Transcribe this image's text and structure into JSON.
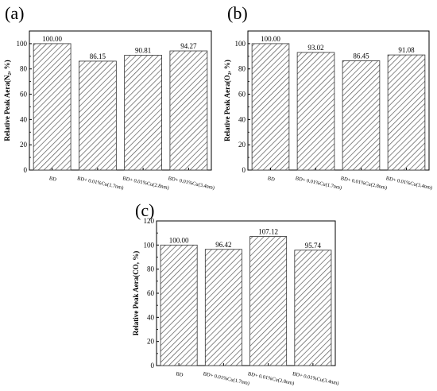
{
  "figure": {
    "panels": [
      "(a)",
      "(b)",
      "(c)"
    ]
  },
  "chart_data": [
    {
      "type": "bar",
      "panel": "(a)",
      "ylabel": "Relative Peak Aera(N₂, %)",
      "categories": [
        "BD",
        "BD+ 0.01%Cu(1.7nm)",
        "BD+ 0.01%Cu(2.8nm)",
        "BD+ 0.01%Cu(3.4nm)"
      ],
      "values": [
        100.0,
        86.15,
        90.81,
        94.27
      ],
      "value_labels": [
        "100.00",
        "86.15",
        "90.81",
        "94.27"
      ],
      "ylim": [
        0,
        110
      ],
      "yticks": [
        "0",
        "20",
        "40",
        "60",
        "80",
        "100"
      ],
      "grid": false
    },
    {
      "type": "bar",
      "panel": "(b)",
      "ylabel": "Relative Peak Aera(O₂, %)",
      "categories": [
        "BD",
        "BD+ 0.01%Cu(1.7nm)",
        "BD+ 0.01%Cu(2.8nm)",
        "BD+ 0.01%Cu(3.4nm)"
      ],
      "values": [
        100.0,
        93.02,
        86.45,
        91.08
      ],
      "value_labels": [
        "100.00",
        "93.02",
        "86.45",
        "91.08"
      ],
      "ylim": [
        0,
        110
      ],
      "yticks": [
        "0",
        "20",
        "40",
        "60",
        "80",
        "100"
      ],
      "grid": false
    },
    {
      "type": "bar",
      "panel": "(c)",
      "ylabel": "Relative Peak Aera(CO, %)",
      "categories": [
        "BD",
        "BD+ 0.01%Cu(1.7nm)",
        "BD+ 0.01%Cu(2.8nm)",
        "BD+ 0.01%Cu(3.4nm)"
      ],
      "values": [
        100.0,
        96.42,
        107.12,
        95.74
      ],
      "value_labels": [
        "100.00",
        "96.42",
        "107.12",
        "95.74"
      ],
      "ylim": [
        0,
        120
      ],
      "yticks": [
        "0",
        "20",
        "40",
        "60",
        "80",
        "100",
        "120"
      ],
      "grid": false
    }
  ]
}
